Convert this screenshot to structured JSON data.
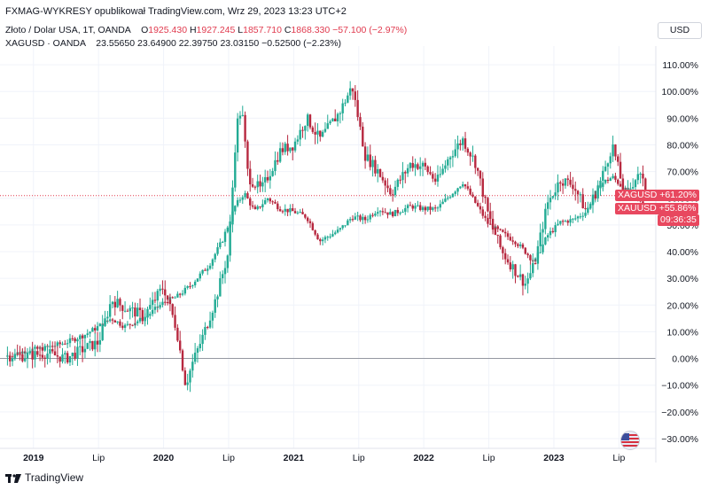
{
  "header": {
    "published": "FXMAG-WYKRESY opublikował TradingView.com, Wrz 29, 2023 13:23 UTC+2"
  },
  "legend": {
    "gold": {
      "name": "Złoto / Dolar USA, 1T, OANDA",
      "o_label": "O",
      "o": "1925.430",
      "h_label": "H",
      "h": "1927.245",
      "l_label": "L",
      "l": "1857.710",
      "c_label": "C",
      "c": "1868.330",
      "change": "−57.100 (−2.97%)"
    },
    "silver": {
      "name": "XAGUSD · OANDA",
      "o": "23.55650",
      "h": "23.64900",
      "l": "22.39750",
      "c": "23.03150",
      "change": "−0.52500 (−2.23%)"
    }
  },
  "currency_button": "USD",
  "price_tags": {
    "xag_label": "XAGUSD",
    "xag_value": "+61.20%",
    "xau_label": "XAUUSD",
    "xau_value": "+55.86%",
    "countdown": "09:36:35"
  },
  "footer": {
    "brand": "TradingView"
  },
  "colors": {
    "up": "#22ab94",
    "down": "#b7283f",
    "tag_green": "#e03a4e",
    "tag_red": "#e8485f"
  },
  "chart_data": {
    "type": "candlestick-comparison",
    "y_unit": "percent change",
    "ylim": [
      -33,
      115
    ],
    "y_ticks": [
      "110.00%",
      "100.00%",
      "90.00%",
      "80.00%",
      "70.00%",
      "60.00%",
      "50.00%",
      "40.00%",
      "30.00%",
      "20.00%",
      "10.00%",
      "0.00%",
      "−10.00%",
      "−20.00%",
      "−30.00%"
    ],
    "y_tick_values": [
      110,
      100,
      90,
      80,
      70,
      60,
      50,
      40,
      30,
      20,
      10,
      0,
      -10,
      -20,
      -30
    ],
    "x_ticks": [
      {
        "label": "2019",
        "t": 2019.0,
        "bold": true
      },
      {
        "label": "Lip",
        "t": 2019.5,
        "bold": false
      },
      {
        "label": "2020",
        "t": 2020.0,
        "bold": true
      },
      {
        "label": "Lip",
        "t": 2020.5,
        "bold": false
      },
      {
        "label": "2021",
        "t": 2021.0,
        "bold": true
      },
      {
        "label": "Lip",
        "t": 2021.5,
        "bold": false
      },
      {
        "label": "2022",
        "t": 2022.0,
        "bold": true
      },
      {
        "label": "Lip",
        "t": 2022.5,
        "bold": false
      },
      {
        "label": "2023",
        "t": 2023.0,
        "bold": true
      },
      {
        "label": "Lip",
        "t": 2023.5,
        "bold": false
      }
    ],
    "t_range": [
      2018.77,
      2023.77
    ],
    "series": [
      {
        "name": "XAUUSD",
        "t": [
          2018.8,
          2018.95,
          2019.1,
          2019.25,
          2019.4,
          2019.5,
          2019.6,
          2019.7,
          2019.85,
          2020.0,
          2020.1,
          2020.2,
          2020.35,
          2020.45,
          2020.55,
          2020.62,
          2020.7,
          2020.8,
          2020.9,
          2021.0,
          2021.1,
          2021.2,
          2021.35,
          2021.45,
          2021.55,
          2021.65,
          2021.75,
          2021.9,
          2022.0,
          2022.1,
          2022.2,
          2022.3,
          2022.4,
          2022.5,
          2022.6,
          2022.7,
          2022.78,
          2022.85,
          2022.95,
          2023.05,
          2023.15,
          2023.25,
          2023.35,
          2023.45,
          2023.55,
          2023.65,
          2023.72
        ],
        "values": [
          1,
          3,
          4,
          6,
          9,
          12,
          15,
          12,
          15,
          21,
          23,
          27,
          35,
          44,
          57,
          62,
          55,
          60,
          56,
          55,
          53,
          44,
          48,
          53,
          52,
          56,
          54,
          57,
          56,
          56,
          61,
          66,
          58,
          50,
          47,
          44,
          40,
          36,
          46,
          51,
          52,
          55,
          65,
          68,
          63,
          60,
          56
        ]
      },
      {
        "name": "XAGUSD",
        "t": [
          2018.8,
          2018.95,
          2019.1,
          2019.25,
          2019.4,
          2019.5,
          2019.6,
          2019.7,
          2019.85,
          2020.0,
          2020.1,
          2020.17,
          2020.22,
          2020.3,
          2020.4,
          2020.5,
          2020.56,
          2020.6,
          2020.65,
          2020.75,
          2020.9,
          2021.0,
          2021.1,
          2021.2,
          2021.35,
          2021.45,
          2021.55,
          2021.65,
          2021.75,
          2021.9,
          2022.0,
          2022.1,
          2022.2,
          2022.3,
          2022.4,
          2022.5,
          2022.6,
          2022.7,
          2022.78,
          2022.85,
          2022.95,
          2023.05,
          2023.15,
          2023.25,
          2023.35,
          2023.45,
          2023.55,
          2023.65,
          2023.72
        ],
        "values": [
          1,
          1,
          2,
          0,
          4,
          6,
          22,
          19,
          16,
          27,
          11,
          -10,
          -2,
          8,
          22,
          40,
          87,
          94,
          68,
          63,
          78,
          80,
          90,
          82,
          92,
          102,
          76,
          70,
          62,
          73,
          72,
          66,
          76,
          82,
          73,
          53,
          40,
          33,
          28,
          35,
          58,
          67,
          65,
          55,
          65,
          80,
          60,
          70,
          61
        ]
      }
    ]
  }
}
